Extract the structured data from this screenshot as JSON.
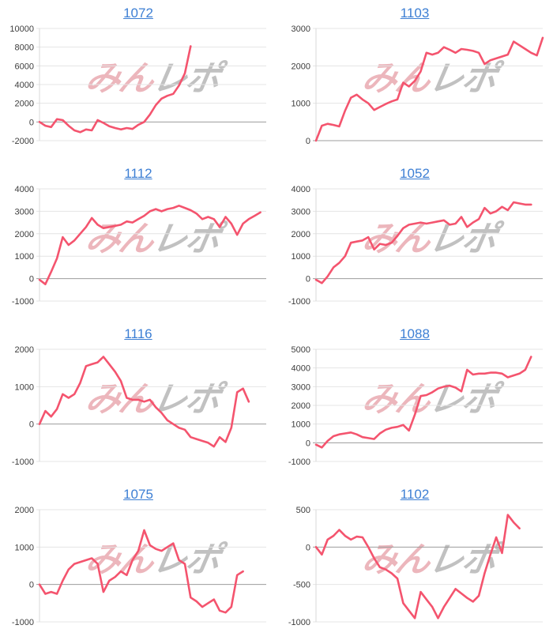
{
  "style": {
    "line_color": "#f4546e",
    "grid_line": "#e4e4e4",
    "zero_line": "#9c9c9c",
    "axis_line": "#d8d8d8",
    "axis_label": "#3d3d3d",
    "link_color": "#3d7fd4",
    "watermark_pink": "#dd7b86",
    "watermark_gray": "#8f8f8f",
    "background": "#ffffff"
  },
  "watermark": {
    "pink": "みん",
    "gray": "レポ"
  },
  "chart_data": [
    {
      "type": "line",
      "title": "1072",
      "xlabel": "",
      "ylabel": "",
      "ylim": [
        -2000,
        10000
      ],
      "ystep": 2000,
      "x_slots": 40,
      "grid": true,
      "legend": false,
      "values": [
        0,
        -400,
        -550,
        300,
        200,
        -400,
        -900,
        -1100,
        -800,
        -900,
        200,
        -100,
        -450,
        -650,
        -800,
        -650,
        -750,
        -300,
        0,
        800,
        1800,
        2500,
        2800,
        3000,
        3900,
        5200,
        8100
      ]
    },
    {
      "type": "line",
      "title": "1103",
      "xlabel": "",
      "ylabel": "",
      "ylim": [
        0,
        3000
      ],
      "ystep": 1000,
      "x_slots": 40,
      "grid": true,
      "legend": false,
      "values": [
        0,
        400,
        450,
        420,
        380,
        800,
        1150,
        1230,
        1100,
        1000,
        820,
        900,
        980,
        1050,
        1100,
        1550,
        1450,
        1600,
        1850,
        2350,
        2300,
        2350,
        2500,
        2430,
        2350,
        2450,
        2430,
        2400,
        2350,
        2050,
        2150,
        2200,
        2250,
        2300,
        2650,
        2550,
        2450,
        2350,
        2280,
        2750
      ]
    },
    {
      "type": "line",
      "title": "1112",
      "xlabel": "",
      "ylabel": "",
      "ylim": [
        -1000,
        4000
      ],
      "ystep": 1000,
      "x_slots": 40,
      "grid": true,
      "legend": false,
      "values": [
        -50,
        -250,
        300,
        900,
        1850,
        1500,
        1700,
        2000,
        2300,
        2700,
        2400,
        2250,
        2300,
        2350,
        2400,
        2550,
        2500,
        2650,
        2800,
        3000,
        3100,
        3000,
        3100,
        3150,
        3250,
        3150,
        3050,
        2900,
        2650,
        2750,
        2650,
        2300,
        2750,
        2450,
        1950,
        2450,
        2650,
        2800,
        2950
      ]
    },
    {
      "type": "line",
      "title": "1052",
      "xlabel": "",
      "ylabel": "",
      "ylim": [
        -1000,
        4000
      ],
      "ystep": 1000,
      "x_slots": 40,
      "grid": true,
      "legend": false,
      "values": [
        -50,
        -200,
        100,
        500,
        700,
        1000,
        1600,
        1650,
        1700,
        1850,
        1300,
        1550,
        1500,
        1600,
        1900,
        2250,
        2400,
        2450,
        2500,
        2450,
        2500,
        2550,
        2600,
        2400,
        2450,
        2750,
        2300,
        2500,
        2650,
        3150,
        2900,
        3000,
        3200,
        3050,
        3400,
        3350,
        3300,
        3300
      ]
    },
    {
      "type": "line",
      "title": "1116",
      "xlabel": "",
      "ylabel": "",
      "ylim": [
        -1000,
        2000
      ],
      "ystep": 1000,
      "x_slots": 40,
      "grid": true,
      "legend": false,
      "values": [
        0,
        350,
        200,
        400,
        800,
        700,
        800,
        1100,
        1550,
        1600,
        1650,
        1800,
        1600,
        1400,
        1150,
        700,
        650,
        650,
        600,
        650,
        450,
        300,
        100,
        0,
        -100,
        -150,
        -350,
        -400,
        -450,
        -500,
        -600,
        -350,
        -480,
        -100,
        850,
        950,
        600
      ]
    },
    {
      "type": "line",
      "title": "1088",
      "xlabel": "",
      "ylabel": "",
      "ylim": [
        -1000,
        5000
      ],
      "ystep": 1000,
      "x_slots": 40,
      "grid": true,
      "legend": false,
      "values": [
        -100,
        -250,
        100,
        350,
        450,
        500,
        550,
        450,
        300,
        250,
        200,
        500,
        700,
        800,
        850,
        950,
        650,
        1500,
        2500,
        2550,
        2700,
        2900,
        3000,
        3050,
        2950,
        2750,
        3900,
        3650,
        3700,
        3700,
        3750,
        3750,
        3700,
        3500,
        3600,
        3700,
        3900,
        4600
      ]
    },
    {
      "type": "line",
      "title": "1075",
      "xlabel": "",
      "ylabel": "",
      "ylim": [
        -1000,
        2000
      ],
      "ystep": 1000,
      "x_slots": 40,
      "grid": true,
      "legend": false,
      "values": [
        0,
        -250,
        -200,
        -250,
        100,
        400,
        550,
        600,
        650,
        700,
        550,
        -200,
        100,
        200,
        350,
        250,
        650,
        900,
        1450,
        1050,
        950,
        900,
        1000,
        1100,
        650,
        550,
        -350,
        -450,
        -600,
        -500,
        -400,
        -700,
        -750,
        -600,
        250,
        350
      ]
    },
    {
      "type": "line",
      "title": "1102",
      "xlabel": "",
      "ylabel": "",
      "ylim": [
        -1000,
        500
      ],
      "ystep": 500,
      "x_slots": 40,
      "grid": true,
      "legend": false,
      "values": [
        0,
        -100,
        100,
        150,
        230,
        150,
        100,
        140,
        130,
        0,
        -150,
        -270,
        -300,
        -350,
        -420,
        -750,
        -850,
        -950,
        -600,
        -700,
        -800,
        -950,
        -800,
        -680,
        -560,
        -620,
        -680,
        -730,
        -650,
        -350,
        -100,
        130,
        -80,
        430,
        330,
        250
      ]
    }
  ]
}
